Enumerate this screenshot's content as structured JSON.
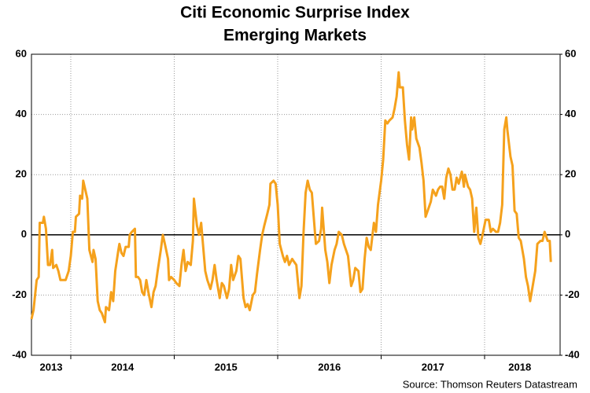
{
  "chart_data": {
    "type": "line",
    "title": "Citi Economic Surprise Index",
    "subtitle": "Emerging Markets",
    "source": "Source: Thomson Reuters Datastream",
    "xlim": [
      2013.62,
      2018.73
    ],
    "xticks": [
      {
        "value": 2013.81,
        "label": "2013"
      },
      {
        "value": 2014.5,
        "label": "2014"
      },
      {
        "value": 2015.5,
        "label": "2015"
      },
      {
        "value": 2016.5,
        "label": "2016"
      },
      {
        "value": 2017.5,
        "label": "2017"
      },
      {
        "value": 2018.34,
        "label": "2018"
      }
    ],
    "xgrid": [
      2014,
      2015,
      2016,
      2017,
      2018
    ],
    "ylim": [
      -40,
      60
    ],
    "yticks": [
      -40,
      -20,
      0,
      20,
      40,
      60
    ],
    "y2lim": [
      -40,
      60
    ],
    "y2ticks": [
      -40,
      -20,
      0,
      20,
      40,
      60
    ],
    "grid": true,
    "series": [
      {
        "name": "Citi Economic Surprise Index Emerging Markets",
        "color": "#f5a11c",
        "x": [
          2013.62,
          2013.64,
          2013.67,
          2013.69,
          2013.7,
          2013.73,
          2013.74,
          2013.76,
          2013.78,
          2013.8,
          2013.82,
          2013.83,
          2013.86,
          2013.88,
          2013.9,
          2013.92,
          2013.95,
          2013.98,
          2014.0,
          2014.02,
          2014.04,
          2014.05,
          2014.08,
          2014.09,
          2014.11,
          2014.12,
          2014.14,
          2014.16,
          2014.18,
          2014.21,
          2014.22,
          2014.24,
          2014.26,
          2014.28,
          2014.3,
          2014.33,
          2014.34,
          2014.37,
          2014.39,
          2014.41,
          2014.43,
          2014.46,
          2014.47,
          2014.49,
          2014.51,
          2014.53,
          2014.56,
          2014.57,
          2014.59,
          2014.62,
          2014.63,
          2014.65,
          2014.67,
          2014.69,
          2014.71,
          2014.73,
          2014.75,
          2014.78,
          2014.8,
          2014.82,
          2014.84,
          2014.87,
          2014.89,
          2014.91,
          2014.94,
          2014.95,
          2014.97,
          2015.0,
          2015.02,
          2015.05,
          2015.07,
          2015.09,
          2015.11,
          2015.13,
          2015.16,
          2015.18,
          2015.19,
          2015.22,
          2015.24,
          2015.26,
          2015.28,
          2015.3,
          2015.32,
          2015.35,
          2015.37,
          2015.39,
          2015.41,
          2015.44,
          2015.46,
          2015.48,
          2015.51,
          2015.53,
          2015.55,
          2015.57,
          2015.6,
          2015.62,
          2015.64,
          2015.67,
          2015.69,
          2015.71,
          2015.73,
          2015.76,
          2015.78,
          2015.8,
          2015.83,
          2015.85,
          2015.87,
          2015.9,
          2015.92,
          2015.93,
          2015.96,
          2015.98,
          2016.0,
          2016.02,
          2016.05,
          2016.07,
          2016.09,
          2016.11,
          2016.14,
          2016.16,
          2016.18,
          2016.21,
          2016.23,
          2016.25,
          2016.27,
          2016.29,
          2016.31,
          2016.33,
          2016.36,
          2016.37,
          2016.4,
          2016.42,
          2016.43,
          2016.46,
          2016.48,
          2016.5,
          2016.52,
          2016.55,
          2016.57,
          2016.59,
          2016.62,
          2016.64,
          2016.66,
          2016.68,
          2016.71,
          2016.73,
          2016.75,
          2016.78,
          2016.8,
          2016.82,
          2016.84,
          2016.86,
          2016.88,
          2016.9,
          2016.93,
          2016.95,
          2016.97,
          2017.0,
          2017.02,
          2017.04,
          2017.06,
          2017.08,
          2017.11,
          2017.13,
          2017.15,
          2017.17,
          2017.18,
          2017.21,
          2017.23,
          2017.25,
          2017.27,
          2017.29,
          2017.3,
          2017.32,
          2017.34,
          2017.37,
          2017.39,
          2017.41,
          2017.43,
          2017.46,
          2017.48,
          2017.5,
          2017.53,
          2017.55,
          2017.57,
          2017.59,
          2017.61,
          2017.63,
          2017.65,
          2017.67,
          2017.69,
          2017.71,
          2017.73,
          2017.75,
          2017.78,
          2017.8,
          2017.81,
          2017.84,
          2017.86,
          2017.88,
          2017.9,
          2017.92,
          2017.94,
          2017.96,
          2017.98,
          2018.01,
          2018.04,
          2018.06,
          2018.08,
          2018.11,
          2018.13,
          2018.15,
          2018.17,
          2018.19,
          2018.21,
          2018.22,
          2018.25,
          2018.27,
          2018.29,
          2018.31,
          2018.33,
          2018.35,
          2018.38,
          2018.4,
          2018.42,
          2018.44,
          2018.47,
          2018.49,
          2018.51,
          2018.54,
          2018.56,
          2018.58,
          2018.61,
          2018.63,
          2018.64
        ],
        "values": [
          -28,
          -25,
          -15,
          -14,
          4,
          4,
          6,
          2,
          -10,
          -10,
          -5,
          -11,
          -10,
          -12,
          -15,
          -15,
          -15,
          -12,
          -7,
          1,
          1,
          6,
          7,
          13,
          12,
          18,
          15,
          12,
          -5,
          -9,
          -5,
          -8,
          -22,
          -25,
          -26,
          -29,
          -24,
          -25,
          -19,
          -22,
          -12,
          -5,
          -3,
          -6,
          -7,
          -4,
          -4,
          0,
          1,
          2,
          -14,
          -14,
          -15,
          -19,
          -20,
          -15,
          -19,
          -24,
          -19,
          -17,
          -12,
          -5,
          0,
          -3,
          -8,
          -15,
          -14,
          -15,
          -16,
          -17,
          -10,
          -5,
          -12,
          -9,
          -10,
          -2,
          12,
          3,
          0,
          4,
          -4,
          -12,
          -15,
          -18,
          -15,
          -10,
          -15,
          -21,
          -16,
          -17,
          -21,
          -18,
          -10,
          -15,
          -12,
          -7,
          -8,
          -21,
          -24,
          -23,
          -25,
          -20,
          -19,
          -13,
          -5,
          0,
          3,
          7,
          10,
          17,
          18,
          17,
          10,
          -3,
          -7,
          -9,
          -7,
          -10,
          -8,
          -9,
          -10,
          -21,
          -17,
          1,
          14,
          18,
          15,
          14,
          1,
          -3,
          -2,
          2,
          9,
          -5,
          -9,
          -16,
          -10,
          -5,
          -3,
          1,
          0,
          -3,
          -5,
          -7,
          -17,
          -15,
          -11,
          -12,
          -19,
          -18,
          -8,
          -1,
          -4,
          -5,
          4,
          1,
          10,
          18,
          25,
          38,
          37,
          38,
          39,
          42,
          46,
          54,
          49,
          49,
          38,
          30,
          25,
          39,
          35,
          39,
          32,
          29,
          24,
          18,
          6,
          9,
          11,
          15,
          13,
          15,
          16,
          16,
          12,
          19,
          22,
          20,
          15,
          15,
          19,
          17,
          21,
          16,
          20,
          16,
          15,
          12,
          1,
          9,
          -1,
          -3,
          0,
          5,
          5,
          1,
          2,
          1,
          1,
          4,
          10,
          35,
          39,
          35,
          26,
          23,
          8,
          7,
          -1,
          -2,
          -8,
          -14,
          -17,
          -22,
          -16,
          -12,
          -3,
          -2,
          -2,
          1,
          -2,
          -2,
          -9
        ]
      }
    ]
  }
}
